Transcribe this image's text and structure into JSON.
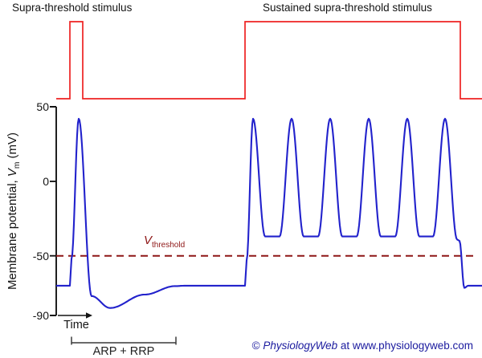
{
  "labels": {
    "stimulus1_title": "Supra-threshold stimulus",
    "stimulus2_title": "Sustained supra-threshold stimulus",
    "y_axis": {
      "pre": "Membrane potential, ",
      "var": "V",
      "sub": "m",
      "post": " (mV)"
    },
    "threshold": {
      "var": "V",
      "sub": "threshold"
    },
    "time_label": "Time",
    "refractory_label": "ARP + RRP",
    "credit": {
      "symbol": "© ",
      "brand": "PhysiologyWeb",
      "rest": " at www.physiologyweb.com"
    }
  },
  "colors": {
    "stimulus": "#ee2222",
    "membrane": "#2222cc",
    "threshold": "#8e1616",
    "axis": "#141414",
    "credit": "#1a1a9e"
  },
  "chart_data": {
    "type": "line",
    "title": "Action potentials evoked by supra-threshold and sustained supra-threshold stimuli",
    "x_axis": {
      "label": "Time",
      "units": "arbitrary",
      "range": [
        0,
        530
      ],
      "numeric_ticks": false
    },
    "y_axis": {
      "label": "Membrane potential, Vm (mV)",
      "ticks": [
        50,
        0,
        -50,
        -90
      ],
      "range": [
        -90,
        50
      ]
    },
    "threshold_mV": -50,
    "resting_potential_mV": -70,
    "action_potential": {
      "peak_mV": 42,
      "undershoot_mV": -85,
      "interspike_plateau_mV": -37,
      "train_spike_count": 6,
      "train_peak_times": [
        245,
        293,
        341,
        389,
        437,
        484
      ]
    },
    "series": [
      {
        "name": "stimulus",
        "type": "step",
        "on_intervals": [
          [
            17,
            33
          ],
          [
            235,
            503
          ]
        ]
      },
      {
        "name": "membrane_potential",
        "type": "smooth-line",
        "anchors": [
          [
            0,
            -70,
            "lin"
          ],
          [
            17,
            -70,
            "lin"
          ],
          [
            19,
            -52,
            "lin"
          ],
          [
            28,
            42,
            "cos"
          ],
          [
            44,
            -77,
            "cos"
          ],
          [
            67,
            -85,
            "cos"
          ],
          [
            110,
            -76,
            "cos"
          ],
          [
            148,
            -70.3,
            "cos"
          ],
          [
            162,
            -70,
            "cos"
          ],
          [
            235,
            -70,
            "lin"
          ],
          [
            237,
            -53,
            "lin"
          ],
          [
            245,
            42,
            "cos"
          ],
          [
            260,
            -37,
            "cos"
          ],
          [
            278,
            -37,
            "lin"
          ],
          [
            293,
            42,
            "cos"
          ],
          [
            308,
            -37,
            "cos"
          ],
          [
            326,
            -37,
            "lin"
          ],
          [
            341,
            42,
            "cos"
          ],
          [
            356,
            -37,
            "cos"
          ],
          [
            374,
            -37,
            "lin"
          ],
          [
            389,
            42,
            "cos"
          ],
          [
            404,
            -37,
            "cos"
          ],
          [
            422,
            -37,
            "lin"
          ],
          [
            437,
            42,
            "cos"
          ],
          [
            452,
            -37,
            "cos"
          ],
          [
            469,
            -37,
            "lin"
          ],
          [
            484,
            42,
            "cos"
          ],
          [
            499,
            -39,
            "cos"
          ],
          [
            502,
            -40,
            "lin"
          ],
          [
            508,
            -71.5,
            "cos"
          ],
          [
            513,
            -70,
            "cos"
          ],
          [
            530,
            -70,
            "lin"
          ]
        ]
      }
    ],
    "annotations": [
      {
        "text": "Vthreshold",
        "at_mV": -50,
        "style": "dashed-line"
      },
      {
        "text": "ARP + RRP",
        "span_t": [
          19,
          149
        ]
      },
      {
        "text": "Time",
        "style": "arrow"
      }
    ]
  }
}
